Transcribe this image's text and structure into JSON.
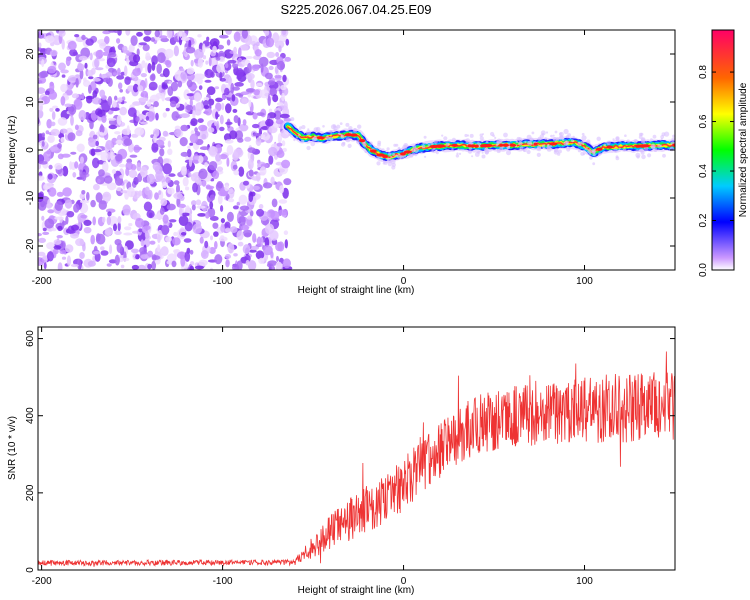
{
  "figure_title": "S225.2026.067.04.25.E09",
  "chart_data": [
    {
      "type": "heatmap",
      "title": "S225.2026.067.04.25.E09",
      "xlabel": "Height of straight line (km)",
      "ylabel": "Frequency (Hz)",
      "xlim": [
        -202,
        150
      ],
      "ylim": [
        -25,
        25
      ],
      "xticks": [
        -200,
        -100,
        0,
        100
      ],
      "yticks": [
        -20,
        -10,
        0,
        10,
        20
      ],
      "colorbar": {
        "label": "Normalized spectral amplitude",
        "range": [
          0.0,
          0.97
        ],
        "ticks": [
          0.0,
          0.2,
          0.4,
          0.6,
          0.8
        ],
        "tick_labels": [
          "0.0",
          "0.2",
          "0.4",
          "0.6",
          "0.8"
        ]
      },
      "noise_region_x": [
        -202,
        -64
      ],
      "ridge": {
        "x": [
          -64,
          -60,
          -55,
          -50,
          -45,
          -40,
          -35,
          -30,
          -25,
          -22,
          -18,
          -15,
          -12,
          -8,
          -4,
          0,
          5,
          10,
          20,
          30,
          40,
          50,
          60,
          70,
          80,
          90,
          95,
          100,
          105,
          110,
          120,
          130,
          140,
          150
        ],
        "freq": [
          5,
          3.5,
          2.5,
          2.8,
          2.5,
          2.8,
          3.0,
          3.2,
          3.0,
          1.5,
          0,
          -0.5,
          -1.2,
          -1.5,
          -1.0,
          -0.8,
          0,
          0.5,
          0.8,
          1.0,
          0.8,
          1.0,
          1.0,
          1.2,
          1.2,
          1.5,
          1.5,
          0.8,
          -0.5,
          0.5,
          0.8,
          0.8,
          1.0,
          1.0
        ]
      }
    },
    {
      "type": "line",
      "xlabel": "Height of straight line (km)",
      "ylabel": "SNR (10 * v/v)",
      "xlim": [
        -202,
        150
      ],
      "ylim": [
        0,
        630
      ],
      "xticks": [
        -200,
        -100,
        0,
        100
      ],
      "yticks": [
        0,
        200,
        400,
        600
      ],
      "series": [
        {
          "name": "SNR",
          "color": "#ee3333",
          "trend_x": [
            -202,
            -60,
            -50,
            -40,
            -30,
            -20,
            -10,
            0,
            10,
            20,
            30,
            40,
            50,
            60,
            80,
            100,
            120,
            150
          ],
          "trend_y": [
            18,
            20,
            60,
            100,
            130,
            160,
            180,
            220,
            270,
            310,
            345,
            380,
            390,
            400,
            410,
            415,
            420,
            430
          ],
          "noise_amplitude": [
            7,
            7,
            30,
            45,
            55,
            60,
            65,
            70,
            70,
            72,
            75,
            78,
            80,
            82,
            85,
            88,
            90,
            92
          ]
        }
      ]
    }
  ]
}
